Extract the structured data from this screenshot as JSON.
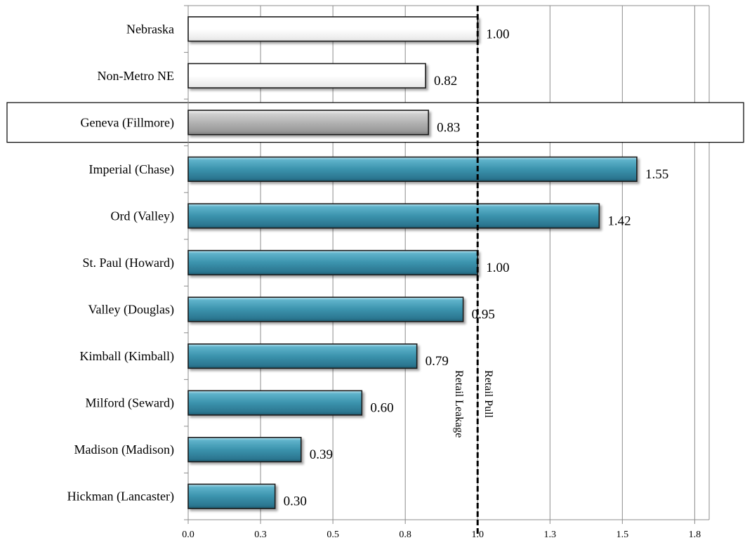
{
  "chart_data": {
    "type": "bar",
    "orientation": "horizontal",
    "categories": [
      "Nebraska",
      "Non-Metro NE",
      "Geneva (Fillmore)",
      "Imperial (Chase)",
      "Ord (Valley)",
      "St. Paul (Howard)",
      "Valley (Douglas)",
      "Kimball (Kimball)",
      "Milford (Seward)",
      "Madison (Madison)",
      "Hickman (Lancaster)"
    ],
    "values": [
      1.0,
      0.82,
      0.83,
      1.55,
      1.42,
      1.0,
      0.95,
      0.79,
      0.6,
      0.39,
      0.3
    ],
    "value_labels": [
      "1.00",
      "0.82",
      "0.83",
      "1.55",
      "1.42",
      "1.00",
      "0.95",
      "0.79",
      "0.60",
      "0.39",
      "0.30"
    ],
    "bar_groups": [
      "benchmark",
      "benchmark",
      "highlight",
      "comparison",
      "comparison",
      "comparison",
      "comparison",
      "comparison",
      "comparison",
      "comparison",
      "comparison"
    ],
    "colors": {
      "benchmark": "#ffffff",
      "highlight": "#b3b3b3",
      "comparison": "#3b93ad"
    },
    "highlighted_category": "Geneva (Fillmore)",
    "xlim": [
      0.0,
      1.8
    ],
    "x_ticks": [
      0.0,
      0.25,
      0.5,
      0.75,
      1.0,
      1.25,
      1.5,
      1.75
    ],
    "x_tick_labels": [
      "0.0",
      "0.3",
      "0.5",
      "0.8",
      "1.0",
      "1.3",
      "1.5",
      "1.8"
    ],
    "reference_line": {
      "x": 1.0,
      "style": "dashed"
    },
    "annotations": {
      "left_of_line": "Retail Leakage",
      "right_of_line": "Retail Pull"
    },
    "grid": "vertical",
    "legend": "none",
    "title": "",
    "xlabel": "",
    "ylabel": ""
  }
}
